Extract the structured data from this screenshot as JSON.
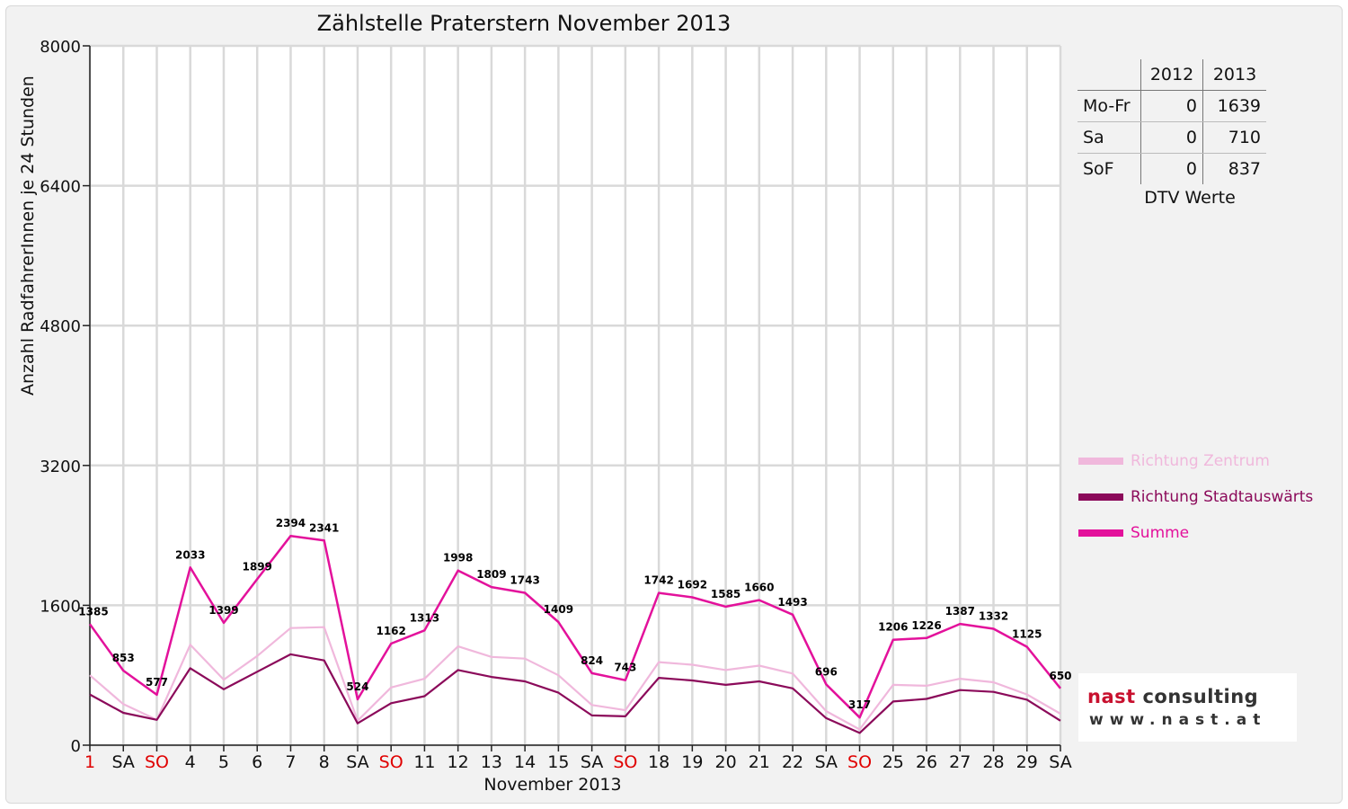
{
  "chart_data": {
    "type": "line",
    "title": "Zählstelle Praterstern November 2013",
    "xlabel": "November 2013",
    "ylabel": "Anzahl RadfahrerInnen je 24 Stunden",
    "ylim": [
      0,
      8000
    ],
    "yticks": [
      "0",
      "1600",
      "3200",
      "4800",
      "6400",
      "8000"
    ],
    "grid": true,
    "legend_position": "right",
    "categories": [
      "1",
      "SA",
      "SO",
      "4",
      "5",
      "6",
      "7",
      "8",
      "SA",
      "SO",
      "11",
      "12",
      "13",
      "14",
      "15",
      "SA",
      "SO",
      "18",
      "19",
      "20",
      "21",
      "22",
      "SA",
      "SO",
      "25",
      "26",
      "27",
      "28",
      "29",
      "SA"
    ],
    "red_categories": [
      0,
      2,
      9,
      16,
      23
    ],
    "series": [
      {
        "name": "Richtung Zentrum",
        "color": "#f0b8dc",
        "values": [
          800,
          470,
          290,
          1150,
          750,
          1020,
          1340,
          1350,
          280,
          660,
          760,
          1130,
          1010,
          990,
          800,
          460,
          400,
          950,
          920,
          860,
          910,
          820,
          390,
          180,
          690,
          680,
          760,
          720,
          580,
          360
        ]
      },
      {
        "name": "Richtung Stadtauswärts",
        "color": "#8b0a5a",
        "values": [
          580,
          370,
          290,
          880,
          640,
          840,
          1040,
          970,
          250,
          480,
          560,
          860,
          780,
          730,
          600,
          340,
          330,
          770,
          740,
          690,
          730,
          650,
          310,
          140,
          500,
          530,
          630,
          610,
          520,
          280
        ]
      },
      {
        "name": "Summe",
        "color": "#e3119b",
        "values": [
          1385,
          853,
          577,
          2033,
          1399,
          1899,
          2394,
          2341,
          524,
          1162,
          1313,
          1998,
          1809,
          1743,
          1409,
          824,
          743,
          1742,
          1692,
          1585,
          1660,
          1493,
          696,
          317,
          1206,
          1226,
          1387,
          1332,
          1125,
          650
        ]
      }
    ],
    "data_labels": [
      "1385",
      "853",
      "577",
      "2033",
      "1399",
      "1899",
      "2394",
      "2341",
      "524",
      "1162",
      "1313",
      "1998",
      "1809",
      "1743",
      "1409",
      "824",
      "743",
      "1742",
      "1692",
      "1585",
      "1660",
      "1493",
      "696",
      "317",
      "1206",
      "1226",
      "1387",
      "1332",
      "1125",
      "650"
    ]
  },
  "dtv": {
    "headers": [
      "",
      "2012",
      "2013"
    ],
    "rows": [
      {
        "label": "Mo-Fr",
        "v2012": "0",
        "v2013": "1639"
      },
      {
        "label": "Sa",
        "v2012": "0",
        "v2013": "710"
      },
      {
        "label": "SoF",
        "v2012": "0",
        "v2013": "837"
      }
    ],
    "caption": "DTV Werte"
  },
  "logo": {
    "name_part1": "nast",
    "name_part2": "consulting",
    "url": "www.nast.at"
  }
}
